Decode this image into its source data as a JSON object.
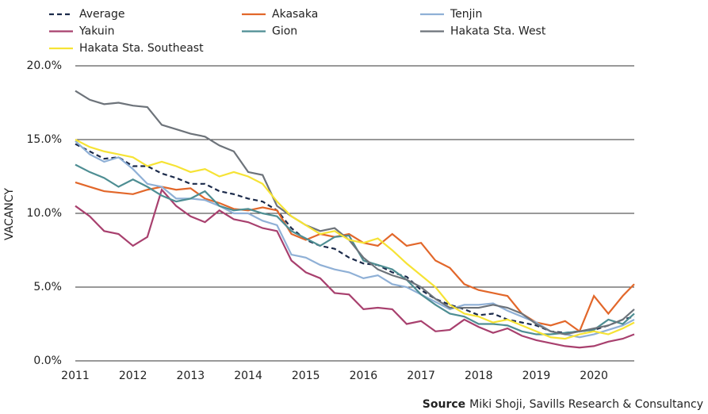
{
  "chart_data": {
    "type": "line",
    "y_label": "VACANCY",
    "source": {
      "label": "Source",
      "text": "Miki Shoji, Savills Research & Consultancy"
    },
    "x": [
      2011,
      2011.25,
      2011.5,
      2011.75,
      2012,
      2012.25,
      2012.5,
      2012.75,
      2013,
      2013.25,
      2013.5,
      2013.75,
      2014,
      2014.25,
      2014.5,
      2014.75,
      2015,
      2015.25,
      2015.5,
      2015.75,
      2016,
      2016.25,
      2016.5,
      2016.75,
      2017,
      2017.25,
      2017.5,
      2017.75,
      2018,
      2018.25,
      2018.5,
      2018.75,
      2019,
      2019.25,
      2019.5,
      2019.75,
      2020,
      2020.25,
      2020.5,
      2020.7
    ],
    "xlim": [
      2011,
      2020.7
    ],
    "xticks": [
      2011,
      2012,
      2013,
      2014,
      2015,
      2016,
      2017,
      2018,
      2019,
      2020
    ],
    "ylim": [
      0,
      20
    ],
    "yticks": [
      {
        "value": 0,
        "label": "0.0%"
      },
      {
        "value": 5,
        "label": "5.0%"
      },
      {
        "value": 10,
        "label": "10.0%"
      },
      {
        "value": 15,
        "label": "15.0%"
      },
      {
        "value": 20,
        "label": "20.0%"
      }
    ],
    "grid": true,
    "series": [
      {
        "name": "Average",
        "color": "#1b2a4a",
        "line_style": "dashed",
        "values": [
          14.7,
          14.2,
          13.7,
          13.8,
          13.2,
          13.2,
          12.7,
          12.4,
          12.0,
          12.0,
          11.5,
          11.3,
          11.0,
          10.8,
          10.2,
          9.0,
          8.2,
          7.8,
          7.6,
          7.0,
          6.6,
          6.5,
          6.0,
          5.7,
          4.8,
          4.2,
          3.8,
          3.5,
          3.1,
          3.2,
          2.8,
          2.6,
          2.4,
          2.0,
          1.9,
          2.0,
          2.1,
          2.4,
          2.8,
          3.0
        ]
      },
      {
        "name": "Akasaka",
        "color": "#e2672a",
        "values": [
          12.1,
          11.8,
          11.5,
          11.4,
          11.3,
          11.6,
          11.8,
          11.6,
          11.7,
          11.0,
          10.7,
          10.3,
          10.2,
          10.4,
          10.2,
          8.6,
          8.2,
          8.6,
          8.4,
          8.6,
          8.0,
          7.8,
          8.6,
          7.8,
          8.0,
          6.8,
          6.3,
          5.2,
          4.8,
          4.6,
          4.4,
          3.2,
          2.6,
          2.4,
          2.7,
          2.0,
          4.4,
          3.2,
          4.4,
          5.2
        ]
      },
      {
        "name": "Tenjin",
        "color": "#8fb0d6",
        "values": [
          14.9,
          14.0,
          13.5,
          13.8,
          13.0,
          12.0,
          11.8,
          11.0,
          11.0,
          10.9,
          10.5,
          10.0,
          10.0,
          9.5,
          9.2,
          7.2,
          7.0,
          6.5,
          6.2,
          6.0,
          5.6,
          5.8,
          5.2,
          5.0,
          4.5,
          4.0,
          3.5,
          3.8,
          3.8,
          3.9,
          3.4,
          3.0,
          2.6,
          2.0,
          1.8,
          1.6,
          1.8,
          2.1,
          2.4,
          2.8
        ]
      },
      {
        "name": "Yakuin",
        "color": "#a8406e",
        "values": [
          10.5,
          9.8,
          8.8,
          8.6,
          7.8,
          8.4,
          11.6,
          10.5,
          9.8,
          9.4,
          10.2,
          9.6,
          9.4,
          9.0,
          8.8,
          6.8,
          6.0,
          5.6,
          4.6,
          4.5,
          3.5,
          3.6,
          3.5,
          2.5,
          2.7,
          2.0,
          2.1,
          2.8,
          2.3,
          1.9,
          2.2,
          1.7,
          1.4,
          1.2,
          1.0,
          0.9,
          1.0,
          1.3,
          1.5,
          1.8
        ]
      },
      {
        "name": "Gion",
        "color": "#4e8e93",
        "values": [
          13.3,
          12.8,
          12.4,
          11.8,
          12.3,
          11.8,
          11.2,
          10.8,
          11.0,
          11.5,
          10.5,
          10.2,
          10.3,
          10.0,
          9.8,
          8.8,
          8.3,
          7.8,
          8.4,
          8.5,
          6.8,
          6.5,
          6.2,
          5.5,
          4.5,
          3.8,
          3.2,
          3.0,
          2.5,
          2.5,
          2.4,
          2.0,
          1.8,
          1.8,
          1.9,
          2.0,
          2.1,
          2.8,
          2.5,
          3.2
        ]
      },
      {
        "name": "Hakata Sta. West",
        "color": "#6d737a",
        "values": [
          18.3,
          17.7,
          17.4,
          17.5,
          17.3,
          17.2,
          16.0,
          15.7,
          15.4,
          15.2,
          14.6,
          14.2,
          12.8,
          12.6,
          10.5,
          9.8,
          9.2,
          8.8,
          9.0,
          8.2,
          7.0,
          6.2,
          5.8,
          5.5,
          5.0,
          4.2,
          3.6,
          3.6,
          3.6,
          3.8,
          3.6,
          3.2,
          2.5,
          2.0,
          1.8,
          2.0,
          2.2,
          2.4,
          2.8,
          3.5
        ]
      },
      {
        "name": "Hakata Sta. Southeast",
        "color": "#f6e335",
        "values": [
          15.0,
          14.5,
          14.2,
          14.0,
          13.8,
          13.2,
          13.5,
          13.2,
          12.8,
          13.0,
          12.5,
          12.8,
          12.5,
          12.0,
          10.8,
          9.8,
          9.2,
          8.6,
          8.8,
          8.2,
          8.0,
          8.3,
          7.5,
          6.6,
          5.8,
          5.0,
          3.8,
          3.2,
          3.0,
          2.6,
          2.8,
          2.4,
          2.0,
          1.6,
          1.5,
          1.8,
          2.0,
          1.8,
          2.2,
          2.6
        ]
      }
    ]
  }
}
